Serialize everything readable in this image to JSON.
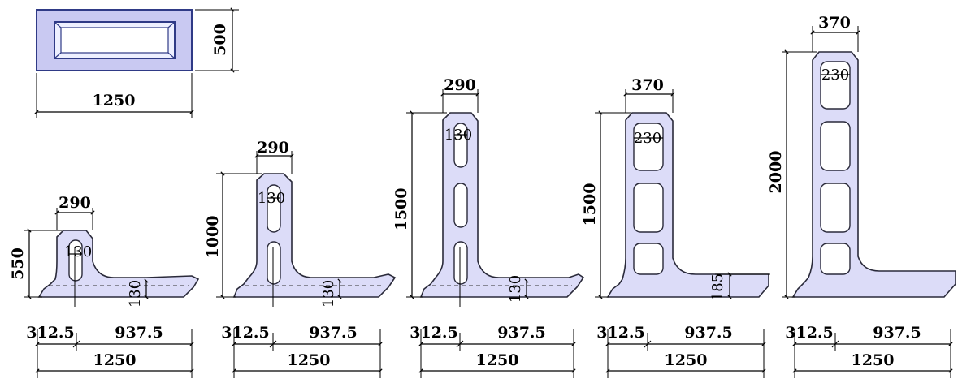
{
  "colors": {
    "body_fill": "#dcdcf8",
    "outline": "#2a2a3a",
    "panel_blue": "#c9c9f2",
    "panel_outer": "#2f3a86"
  },
  "panel": {
    "width": "1250",
    "height": "500"
  },
  "sections": [
    {
      "id": "s1",
      "top_width": "290",
      "hole_width": "130",
      "base_thickness": "130",
      "height": "550",
      "toe": "312.5",
      "heel": "937.5",
      "base_width": "1250"
    },
    {
      "id": "s2",
      "top_width": "290",
      "hole_width": "130",
      "base_thickness": "130",
      "height": "1000",
      "toe": "312.5",
      "heel": "937.5",
      "base_width": "1250"
    },
    {
      "id": "s3",
      "top_width": "290",
      "hole_width": "130",
      "base_thickness": "130",
      "height": "1500",
      "toe": "312.5",
      "heel": "937.5",
      "base_width": "1250"
    },
    {
      "id": "s4",
      "top_width": "370",
      "hole_width": "230",
      "base_thickness": "185",
      "height": "1500",
      "toe": "312.5",
      "heel": "937.5",
      "base_width": "1250"
    },
    {
      "id": "s5",
      "top_width": "370",
      "hole_width": "230",
      "height": "2000",
      "toe": "312.5",
      "heel": "937.5",
      "base_width": "1250"
    }
  ]
}
